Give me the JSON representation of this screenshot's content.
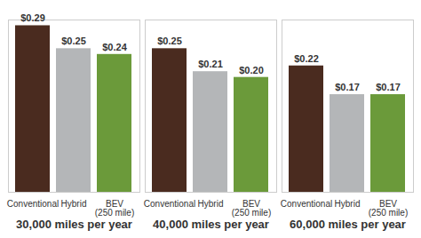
{
  "chart_data": {
    "type": "bar",
    "categories": [
      "30,000 miles per year",
      "40,000 miles per year",
      "60,000 miles per year"
    ],
    "series": [
      {
        "name": "Conventional",
        "color": "#4a2b1f",
        "values": [
          0.29,
          0.25,
          0.22
        ],
        "value_labels": [
          "$0.29",
          "$0.25",
          "$0.22"
        ]
      },
      {
        "name": "Hybrid",
        "color": "#b4b6b8",
        "values": [
          0.25,
          0.21,
          0.17
        ],
        "value_labels": [
          "$0.25",
          "$0.21",
          "$0.17"
        ]
      },
      {
        "name": "BEV (250 mile)",
        "color": "#6b9a3a",
        "values": [
          0.24,
          0.2,
          0.17
        ],
        "value_labels": [
          "$0.24",
          "$0.20",
          "$0.17"
        ]
      }
    ],
    "ylim": [
      0,
      0.3
    ],
    "yticks": [],
    "data_labels": true,
    "tick_labels": "x"
  }
}
